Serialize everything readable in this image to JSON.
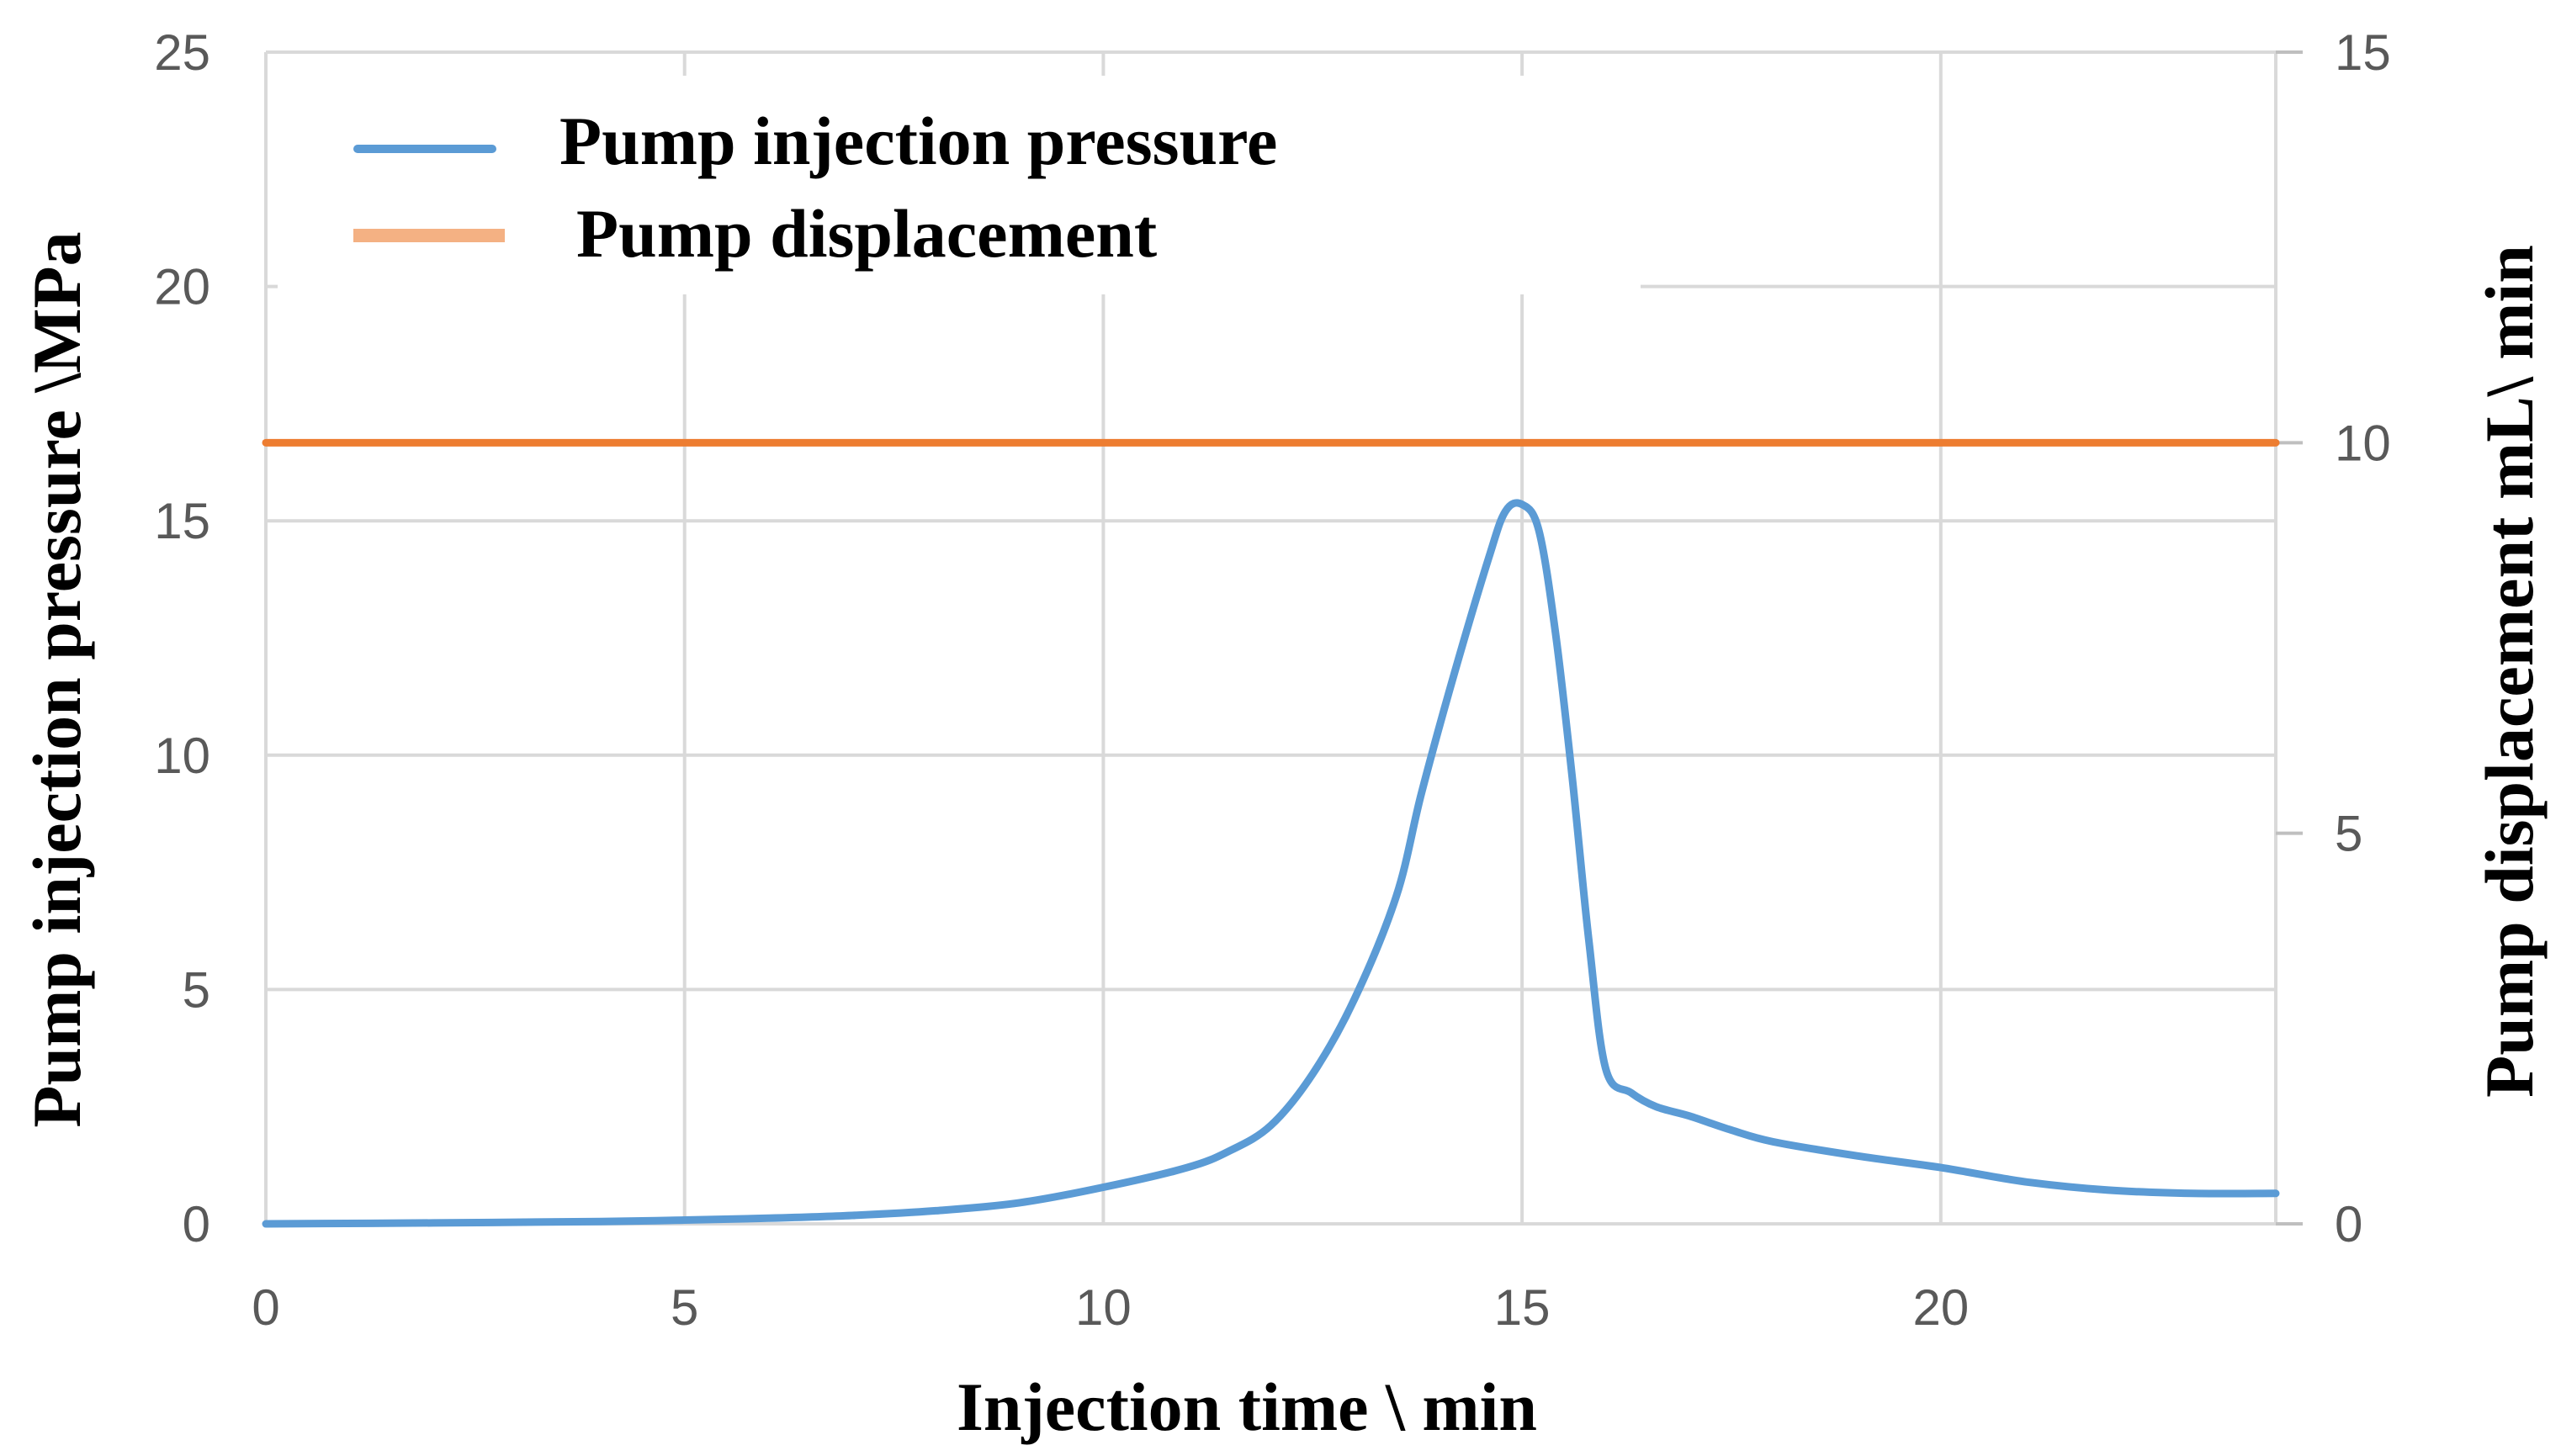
{
  "chart_data": {
    "type": "line",
    "title": "",
    "xlabel": "Injection time \\ min",
    "ylabel_left": "Pump injection pressure \\MPa",
    "ylabel_right": "Pump displacement  mL\\ min",
    "xlim": [
      0,
      24
    ],
    "ylim_left": [
      0,
      25
    ],
    "ylim_right": [
      0,
      15
    ],
    "x_ticks": [
      0,
      5,
      10,
      15,
      20
    ],
    "y_ticks_left": [
      0,
      5,
      10,
      15,
      20,
      25
    ],
    "y_ticks_right": [
      0,
      5,
      10,
      15
    ],
    "grid": true,
    "legend_position": "top-left",
    "series": [
      {
        "name": "Pump injection pressure",
        "axis": "left",
        "color": "#5B9BD5",
        "x": [
          0,
          2,
          4,
          5,
          6,
          7,
          8,
          9,
          10,
          11,
          11.5,
          12,
          12.5,
          13,
          13.5,
          13.8,
          14.2,
          14.6,
          14.8,
          15,
          15.2,
          15.4,
          15.6,
          15.8,
          16,
          16.3,
          16.6,
          17,
          17.5,
          18,
          19,
          20,
          21,
          22,
          23,
          24
        ],
        "values": [
          0,
          0.02,
          0.05,
          0.08,
          0.12,
          0.18,
          0.28,
          0.45,
          0.78,
          1.2,
          1.55,
          2.1,
          3.2,
          4.8,
          7.0,
          9.2,
          11.8,
          14.2,
          15.2,
          15.35,
          14.8,
          12.6,
          9.5,
          6.0,
          3.3,
          2.8,
          2.5,
          2.3,
          2.0,
          1.75,
          1.45,
          1.2,
          0.9,
          0.72,
          0.65,
          0.65
        ]
      },
      {
        "name": "Pump displacement",
        "axis": "right",
        "color": "#ED7D31",
        "legend_color": "#F4B183",
        "x": [
          0,
          24
        ],
        "values": [
          10,
          10
        ]
      }
    ]
  }
}
